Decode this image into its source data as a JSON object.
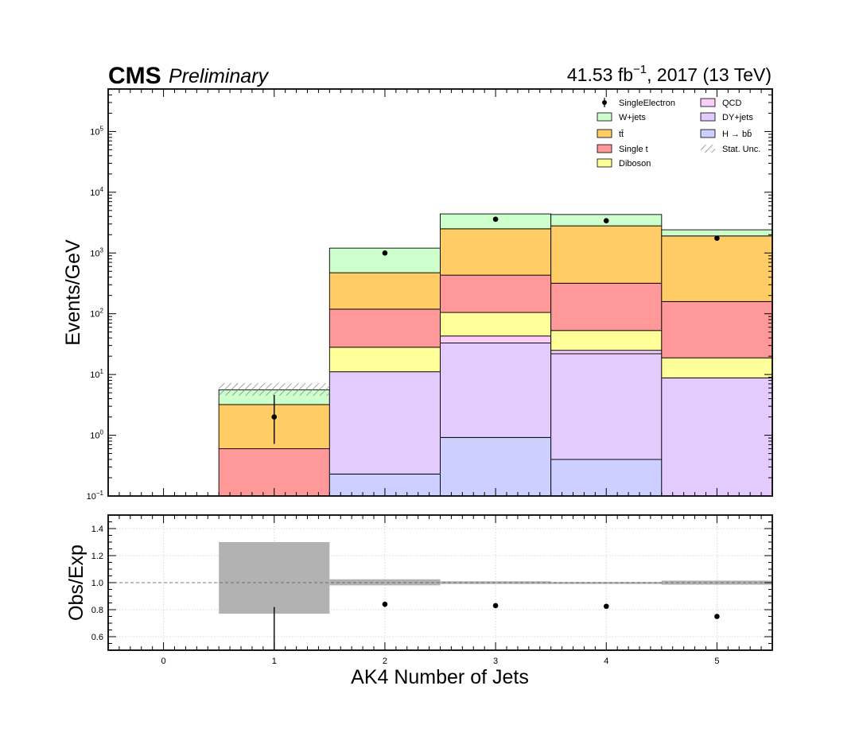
{
  "header": {
    "cms": "CMS",
    "preliminary": "Preliminary",
    "lumi_value": "41.53 fb",
    "lumi_exp": "−1",
    "lumi_rest": ", 2017 (13 TeV)"
  },
  "chart_data": [
    {
      "type": "bar",
      "stacked": true,
      "log_y": true,
      "ylabel": "Events/GeV",
      "ylim": [
        0.1,
        500000
      ],
      "xlim": [
        -0.5,
        5.5
      ],
      "y_ticks": [
        {
          "value": 0.1,
          "base": "10",
          "exp": "−1"
        },
        {
          "value": 1,
          "base": "10",
          "exp": "0"
        },
        {
          "value": 10,
          "base": "10",
          "exp": "1"
        },
        {
          "value": 100,
          "base": "10",
          "exp": "2"
        },
        {
          "value": 1000,
          "base": "10",
          "exp": "3"
        },
        {
          "value": 10000,
          "base": "10",
          "exp": "4"
        },
        {
          "value": 100000,
          "base": "10",
          "exp": "5"
        }
      ],
      "categories": [
        0,
        1,
        2,
        3,
        4,
        5
      ],
      "series": [
        {
          "key": "hbb",
          "name": "H → bb̄",
          "color": "#cccfff",
          "values": [
            0,
            0,
            0.23,
            0.92,
            0.4,
            0.05
          ]
        },
        {
          "key": "dy",
          "name": "DY+jets",
          "color": "#e3ccfd",
          "values": [
            0,
            0,
            10.87,
            32.1,
            21.6,
            8.75
          ]
        },
        {
          "key": "qcd",
          "name": "QCD",
          "color": "#fbcdfb",
          "values": [
            0,
            0,
            0,
            10,
            3,
            0
          ]
        },
        {
          "key": "diboson",
          "name": "Diboson",
          "color": "#ffff99",
          "values": [
            0,
            0,
            17,
            62,
            28,
            10
          ]
        },
        {
          "key": "singlet",
          "name": "Single t",
          "color": "#ff9999",
          "values": [
            0,
            0.6,
            91,
            327,
            265,
            140
          ]
        },
        {
          "key": "ttbar",
          "name": "tt̄",
          "color": "#ffcc66",
          "values": [
            0,
            2.6,
            354,
            2070,
            2480,
            1750
          ]
        },
        {
          "key": "wjets",
          "name": "W+jets",
          "color": "#ccffcc",
          "values": [
            0,
            2.4,
            730,
            1900,
            1500,
            500
          ]
        }
      ],
      "stat_unc": {
        "name": "Stat. Unc.",
        "band": [
          [
            1,
            4.5,
            7.2
          ]
        ]
      },
      "data_series": {
        "name": "SingleElectron",
        "points": [
          {
            "x": 1,
            "y": 2,
            "err_low": 0.72,
            "err_high": 4.6
          },
          {
            "x": 2,
            "y": 1000
          },
          {
            "x": 3,
            "y": 3600
          },
          {
            "x": 4,
            "y": 3400
          },
          {
            "x": 5,
            "y": 1750
          }
        ]
      },
      "legend_position": "top-right"
    },
    {
      "type": "scatter",
      "ylabel": "Obs/Exp",
      "xlabel": "AK4 Number of Jets",
      "xlim": [
        -0.5,
        5.5
      ],
      "ylim": [
        0.5,
        1.5
      ],
      "x_ticks": [
        "0",
        "1",
        "2",
        "3",
        "4",
        "5"
      ],
      "y_ticks": [
        "0.6",
        "0.8",
        "1.0",
        "1.2",
        "1.4"
      ],
      "reference_line": 1.0,
      "grid": true,
      "unc_band": [
        {
          "x": 1,
          "low": 0.77,
          "high": 1.3
        },
        {
          "x": 2,
          "low": 0.98,
          "high": 1.025
        },
        {
          "x": 3,
          "low": 0.99,
          "high": 1.01
        },
        {
          "x": 4,
          "low": 0.99,
          "high": 1.005
        },
        {
          "x": 5,
          "low": 0.985,
          "high": 1.015
        }
      ],
      "points": [
        {
          "x": 2,
          "y": 0.84,
          "err_low": 0.82,
          "err_high": 0.86
        },
        {
          "x": 3,
          "y": 0.83
        },
        {
          "x": 4,
          "y": 0.825
        },
        {
          "x": 5,
          "y": 0.75
        }
      ],
      "offscale_point": {
        "x": 1,
        "err_high": 0.82
      }
    }
  ],
  "legend": {
    "items": [
      {
        "label": "SingleElectron",
        "kind": "data"
      },
      {
        "label": "QCD",
        "kind": "fill",
        "color": "#fbcdfb"
      },
      {
        "label": "W+jets",
        "kind": "fill",
        "color": "#ccffcc"
      },
      {
        "label": "DY+jets",
        "kind": "fill",
        "color": "#e3ccfd"
      },
      {
        "label": "tt̄",
        "kind": "fill",
        "color": "#ffcc66"
      },
      {
        "label": "H → bb̄",
        "kind": "fill",
        "color": "#cccfff"
      },
      {
        "label": "Single t",
        "kind": "fill",
        "color": "#ff9999"
      },
      {
        "label": "Stat. Unc.",
        "kind": "hatch"
      },
      {
        "label": "Diboson",
        "kind": "fill",
        "color": "#ffff99"
      }
    ]
  }
}
